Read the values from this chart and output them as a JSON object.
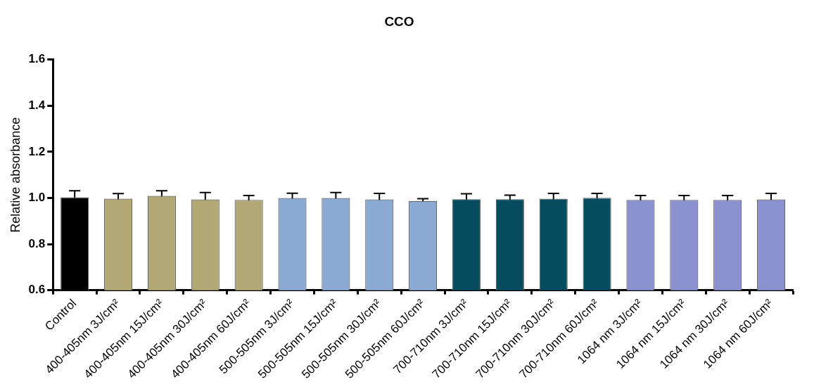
{
  "chart_data": {
    "type": "bar",
    "title": "CCO",
    "ylabel": "Relative absorbance",
    "categories": [
      "Control",
      "400-405nm 3J/cm²",
      "400-405nm 15J/cm²",
      "400-405nm 30J/cm²",
      "400-405nm 60J/cm²",
      "500-505nm 3J/cm²",
      "500-505nm 15J/cm²",
      "500-505nm 30J/cm²",
      "500-505nm 60J/cm²",
      "700-710nm 3J/cm²",
      "700-710nm 15J/cm²",
      "700-710nm 30J/cm²",
      "700-710nm 60J/cm²",
      "1064 nm 3J/cm²",
      "1064 nm 15J/cm²",
      "1064 nm 30J/cm²",
      "1064 nm 60J/cm²"
    ],
    "values": [
      1.003,
      0.997,
      1.009,
      0.994,
      0.992,
      1.0,
      1.0,
      0.994,
      0.987,
      0.995,
      0.995,
      0.997,
      1.001,
      0.992,
      0.992,
      0.992,
      0.994
    ],
    "errors": [
      0.028,
      0.022,
      0.022,
      0.03,
      0.019,
      0.021,
      0.024,
      0.026,
      0.01,
      0.023,
      0.017,
      0.023,
      0.019,
      0.019,
      0.019,
      0.019,
      0.026
    ],
    "colors": [
      "#000000",
      "#b2a876",
      "#b2a876",
      "#b2a876",
      "#b2a876",
      "#8aaad4",
      "#8aaad4",
      "#8aaad4",
      "#8aaad4",
      "#064b5e",
      "#064b5e",
      "#064b5e",
      "#064b5e",
      "#8b90cf",
      "#8b90cf",
      "#8b90cf",
      "#8b90cf"
    ],
    "ylim": [
      0.6,
      1.6
    ],
    "yticks": [
      0.6,
      0.8,
      {
        "value": 1,
        "label": "1.0"
      },
      1.2,
      1.4,
      1.6
    ],
    "grid": false,
    "legend": false
  }
}
